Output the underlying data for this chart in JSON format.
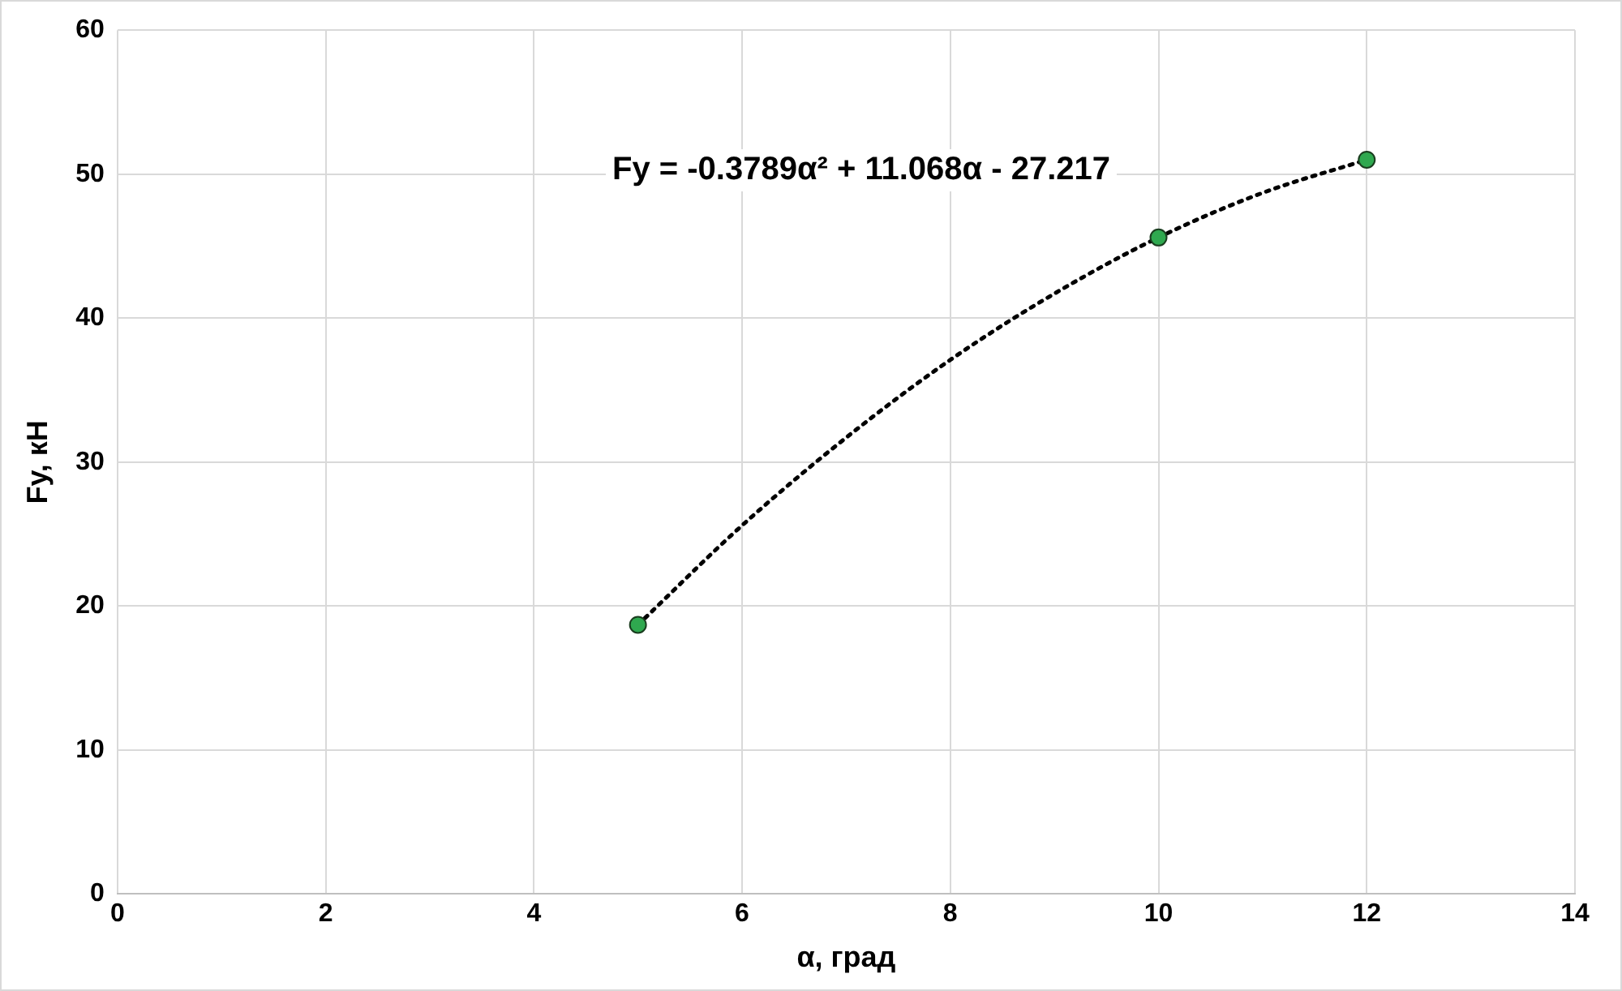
{
  "chart_data": {
    "type": "scatter",
    "xlabel": "α, град",
    "ylabel": "Fy, кН",
    "xlim": [
      0,
      14
    ],
    "xticks": [
      0,
      2,
      4,
      6,
      8,
      10,
      12,
      14
    ],
    "ylim": [
      0,
      60
    ],
    "yticks": [
      0,
      10,
      20,
      30,
      40,
      50,
      60
    ],
    "grid": true,
    "legend": false,
    "marker": "circle",
    "annotations": [
      "Fy = -0.3789α² + 11.068α - 27.217"
    ],
    "series": [
      {
        "color": "#2fa84f",
        "x": [
          5,
          10,
          12
        ],
        "values": [
          18.7,
          45.6,
          51.0
        ]
      },
      {
        "type": "line",
        "color": "#000000",
        "marker": "none",
        "line_style": "dotted",
        "x": [
          5,
          6,
          7,
          8,
          9,
          10,
          11,
          12
        ],
        "values": [
          18.7,
          25.6,
          31.7,
          37.1,
          41.7,
          45.6,
          48.7,
          51.0
        ]
      }
    ]
  }
}
